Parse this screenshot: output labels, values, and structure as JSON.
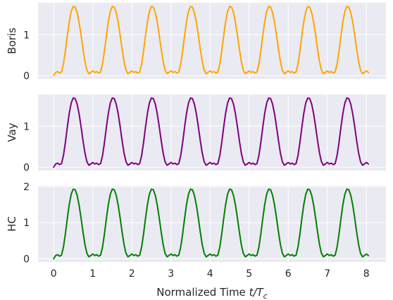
{
  "chart_data": [
    {
      "type": "line",
      "ylabel": "Boris",
      "xlim": [
        -0.4,
        8.5
      ],
      "ylim": [
        -0.08,
        1.78
      ],
      "yticks": [
        0,
        1
      ],
      "show_xticklabels": false,
      "grid": true,
      "series": [
        {
          "color": "#ffa500",
          "x": [
            0,
            0.05,
            0.1,
            0.15,
            0.2,
            0.25,
            0.3,
            0.35,
            0.4,
            0.45,
            0.5,
            0.55,
            0.6,
            0.65,
            0.7,
            0.75,
            0.8,
            0.85,
            0.9,
            0.95,
            1.0,
            1.05,
            1.1,
            1.15,
            1.2,
            1.25,
            1.3,
            1.35,
            1.4,
            1.45,
            1.5,
            1.55,
            1.6,
            1.65,
            1.7,
            1.75,
            1.8,
            1.85,
            1.9,
            1.95,
            2.0,
            2.05,
            2.1,
            2.15,
            2.2,
            2.25,
            2.3,
            2.35,
            2.4,
            2.45,
            2.5,
            2.55,
            2.6,
            2.65,
            2.7,
            2.75,
            2.8,
            2.85,
            2.9,
            2.95,
            3.0,
            3.05,
            3.1,
            3.15,
            3.2,
            3.25,
            3.3,
            3.35,
            3.4,
            3.45,
            3.5,
            3.55,
            3.6,
            3.65,
            3.7,
            3.75,
            3.8,
            3.85,
            3.9,
            3.95,
            4.0,
            4.05,
            4.1,
            4.15,
            4.2,
            4.25,
            4.3,
            4.35,
            4.4,
            4.45,
            4.5,
            4.55,
            4.6,
            4.65,
            4.7,
            4.75,
            4.8,
            4.85,
            4.9,
            4.95,
            5.0,
            5.05,
            5.1,
            5.15,
            5.2,
            5.25,
            5.3,
            5.35,
            5.4,
            5.45,
            5.5,
            5.55,
            5.6,
            5.65,
            5.7,
            5.75,
            5.8,
            5.85,
            5.9,
            5.95,
            6.0,
            6.05,
            6.1,
            6.15,
            6.2,
            6.25,
            6.3,
            6.35,
            6.4,
            6.45,
            6.5,
            6.55,
            6.6,
            6.65,
            6.7,
            6.75,
            6.8,
            6.85,
            6.9,
            6.95,
            7.0,
            7.05,
            7.1,
            7.15,
            7.2,
            7.25,
            7.3,
            7.35,
            7.4,
            7.45,
            7.5,
            7.55,
            7.6,
            7.65,
            7.7,
            7.75,
            7.8,
            7.85,
            7.9,
            7.95,
            8.0,
            8.05
          ],
          "y": [
            0.0,
            0.077,
            0.098,
            0.063,
            0.086,
            0.283,
            0.608,
            0.985,
            1.327,
            1.574,
            1.692,
            1.676,
            1.542,
            1.306,
            0.993,
            0.652,
            0.346,
            0.132,
            0.047,
            0.077,
            0.116,
            0.077,
            0.098,
            0.063,
            0.086,
            0.283,
            0.608,
            0.985,
            1.327,
            1.574,
            1.692,
            1.676,
            1.542,
            1.306,
            0.993,
            0.652,
            0.346,
            0.132,
            0.047,
            0.077,
            0.116,
            0.077,
            0.098,
            0.063,
            0.086,
            0.283,
            0.608,
            0.985,
            1.327,
            1.574,
            1.692,
            1.676,
            1.542,
            1.306,
            0.993,
            0.652,
            0.346,
            0.132,
            0.047,
            0.077,
            0.116,
            0.077,
            0.098,
            0.063,
            0.086,
            0.283,
            0.608,
            0.985,
            1.327,
            1.574,
            1.692,
            1.676,
            1.542,
            1.306,
            0.993,
            0.652,
            0.346,
            0.132,
            0.047,
            0.077,
            0.116,
            0.077,
            0.098,
            0.063,
            0.086,
            0.283,
            0.608,
            0.985,
            1.327,
            1.574,
            1.692,
            1.676,
            1.542,
            1.306,
            0.993,
            0.652,
            0.346,
            0.132,
            0.047,
            0.077,
            0.116,
            0.077,
            0.098,
            0.063,
            0.086,
            0.283,
            0.608,
            0.985,
            1.327,
            1.574,
            1.692,
            1.676,
            1.542,
            1.306,
            0.993,
            0.652,
            0.346,
            0.132,
            0.047,
            0.077,
            0.116,
            0.077,
            0.098,
            0.063,
            0.086,
            0.283,
            0.608,
            0.985,
            1.327,
            1.574,
            1.692,
            1.676,
            1.542,
            1.306,
            0.993,
            0.652,
            0.346,
            0.132,
            0.047,
            0.077,
            0.116,
            0.077,
            0.098,
            0.063,
            0.086,
            0.283,
            0.608,
            0.985,
            1.327,
            1.574,
            1.692,
            1.676,
            1.542,
            1.306,
            0.993,
            0.652,
            0.346,
            0.132,
            0.047,
            0.077,
            0.116,
            0.077
          ]
        }
      ]
    },
    {
      "type": "line",
      "ylabel": "Vay",
      "xlim": [
        -0.4,
        8.5
      ],
      "ylim": [
        -0.08,
        1.78
      ],
      "yticks": [
        0,
        1
      ],
      "show_xticklabels": false,
      "grid": true,
      "series": [
        {
          "color": "#800080",
          "x": [
            0,
            0.05,
            0.1,
            0.15,
            0.2,
            0.25,
            0.3,
            0.35,
            0.4,
            0.45,
            0.5,
            0.55,
            0.6,
            0.65,
            0.7,
            0.75,
            0.8,
            0.85,
            0.9,
            0.95,
            1.0,
            1.05,
            1.1,
            1.15,
            1.2,
            1.25,
            1.3,
            1.35,
            1.4,
            1.45,
            1.5,
            1.55,
            1.6,
            1.65,
            1.7,
            1.75,
            1.8,
            1.85,
            1.9,
            1.95,
            2.0,
            2.05,
            2.1,
            2.15,
            2.2,
            2.25,
            2.3,
            2.35,
            2.4,
            2.45,
            2.5,
            2.55,
            2.6,
            2.65,
            2.7,
            2.75,
            2.8,
            2.85,
            2.9,
            2.95,
            3.0,
            3.05,
            3.1,
            3.15,
            3.2,
            3.25,
            3.3,
            3.35,
            3.4,
            3.45,
            3.5,
            3.55,
            3.6,
            3.65,
            3.7,
            3.75,
            3.8,
            3.85,
            3.9,
            3.95,
            4.0,
            4.05,
            4.1,
            4.15,
            4.2,
            4.25,
            4.3,
            4.35,
            4.4,
            4.45,
            4.5,
            4.55,
            4.6,
            4.65,
            4.7,
            4.75,
            4.8,
            4.85,
            4.9,
            4.95,
            5.0,
            5.05,
            5.1,
            5.15,
            5.2,
            5.25,
            5.3,
            5.35,
            5.4,
            5.45,
            5.5,
            5.55,
            5.6,
            5.65,
            5.7,
            5.75,
            5.8,
            5.85,
            5.9,
            5.95,
            6.0,
            6.05,
            6.1,
            6.15,
            6.2,
            6.25,
            6.3,
            6.35,
            6.4,
            6.45,
            6.5,
            6.55,
            6.6,
            6.65,
            6.7,
            6.75,
            6.8,
            6.85,
            6.9,
            6.95,
            7.0,
            7.05,
            7.1,
            7.15,
            7.2,
            7.25,
            7.3,
            7.35,
            7.4,
            7.45,
            7.5,
            7.55,
            7.6,
            7.65,
            7.7,
            7.75,
            7.8,
            7.85,
            7.9,
            7.95,
            8.0,
            8.05
          ],
          "y": [
            0.0,
            0.077,
            0.098,
            0.063,
            0.086,
            0.283,
            0.608,
            0.985,
            1.327,
            1.574,
            1.692,
            1.676,
            1.542,
            1.306,
            0.993,
            0.652,
            0.346,
            0.132,
            0.047,
            0.077,
            0.116,
            0.077,
            0.098,
            0.063,
            0.086,
            0.283,
            0.608,
            0.985,
            1.327,
            1.574,
            1.692,
            1.676,
            1.542,
            1.306,
            0.993,
            0.652,
            0.346,
            0.132,
            0.047,
            0.077,
            0.116,
            0.077,
            0.098,
            0.063,
            0.086,
            0.283,
            0.608,
            0.985,
            1.327,
            1.574,
            1.692,
            1.676,
            1.542,
            1.306,
            0.993,
            0.652,
            0.346,
            0.132,
            0.047,
            0.077,
            0.116,
            0.077,
            0.098,
            0.063,
            0.086,
            0.283,
            0.608,
            0.985,
            1.327,
            1.574,
            1.692,
            1.676,
            1.542,
            1.306,
            0.993,
            0.652,
            0.346,
            0.132,
            0.047,
            0.077,
            0.116,
            0.077,
            0.098,
            0.063,
            0.086,
            0.283,
            0.608,
            0.985,
            1.327,
            1.574,
            1.692,
            1.676,
            1.542,
            1.306,
            0.993,
            0.652,
            0.346,
            0.132,
            0.047,
            0.077,
            0.116,
            0.077,
            0.098,
            0.063,
            0.086,
            0.283,
            0.608,
            0.985,
            1.327,
            1.574,
            1.692,
            1.676,
            1.542,
            1.306,
            0.993,
            0.652,
            0.346,
            0.132,
            0.047,
            0.077,
            0.116,
            0.077,
            0.098,
            0.063,
            0.086,
            0.283,
            0.608,
            0.985,
            1.327,
            1.574,
            1.692,
            1.676,
            1.542,
            1.306,
            0.993,
            0.652,
            0.346,
            0.132,
            0.047,
            0.077,
            0.116,
            0.077,
            0.098,
            0.063,
            0.086,
            0.283,
            0.608,
            0.985,
            1.327,
            1.574,
            1.692,
            1.676,
            1.542,
            1.306,
            0.993,
            0.652,
            0.346,
            0.132,
            0.047,
            0.077,
            0.116,
            0.077
          ]
        }
      ]
    },
    {
      "type": "line",
      "ylabel": "HC",
      "xlabel_text": "Normalized Time ",
      "xlabel_math": "t/T",
      "xlabel_sub": "c",
      "xlim": [
        -0.4,
        8.5
      ],
      "ylim": [
        -0.09,
        2.02
      ],
      "yticks": [
        0,
        1,
        2
      ],
      "xticks": [
        0,
        1,
        2,
        3,
        4,
        5,
        6,
        7,
        8
      ],
      "show_xticklabels": true,
      "grid": true,
      "series": [
        {
          "color": "#008000",
          "x": [
            0,
            0.05,
            0.1,
            0.15,
            0.2,
            0.25,
            0.3,
            0.35,
            0.4,
            0.45,
            0.5,
            0.55,
            0.6,
            0.65,
            0.7,
            0.75,
            0.8,
            0.85,
            0.9,
            0.95,
            1.0,
            1.05,
            1.1,
            1.15,
            1.2,
            1.25,
            1.3,
            1.35,
            1.4,
            1.45,
            1.5,
            1.55,
            1.6,
            1.65,
            1.7,
            1.75,
            1.8,
            1.85,
            1.9,
            1.95,
            2.0,
            2.05,
            2.1,
            2.15,
            2.2,
            2.25,
            2.3,
            2.35,
            2.4,
            2.45,
            2.5,
            2.55,
            2.6,
            2.65,
            2.7,
            2.75,
            2.8,
            2.85,
            2.9,
            2.95,
            3.0,
            3.05,
            3.1,
            3.15,
            3.2,
            3.25,
            3.3,
            3.35,
            3.4,
            3.45,
            3.5,
            3.55,
            3.6,
            3.65,
            3.7,
            3.75,
            3.8,
            3.85,
            3.9,
            3.95,
            4.0,
            4.05,
            4.1,
            4.15,
            4.2,
            4.25,
            4.3,
            4.35,
            4.4,
            4.45,
            4.5,
            4.55,
            4.6,
            4.65,
            4.7,
            4.75,
            4.8,
            4.85,
            4.9,
            4.95,
            5.0,
            5.05,
            5.1,
            5.15,
            5.2,
            5.25,
            5.3,
            5.35,
            5.4,
            5.45,
            5.5,
            5.55,
            5.6,
            5.65,
            5.7,
            5.75,
            5.8,
            5.85,
            5.9,
            5.95,
            6.0,
            6.05,
            6.1,
            6.15,
            6.2,
            6.25,
            6.3,
            6.35,
            6.4,
            6.45,
            6.5,
            6.55,
            6.6,
            6.65,
            6.7,
            6.75,
            6.8,
            6.85,
            6.9,
            6.95,
            7.0,
            7.05,
            7.1,
            7.15,
            7.2,
            7.25,
            7.3,
            7.35,
            7.4,
            7.45,
            7.5,
            7.55,
            7.6,
            7.65,
            7.7,
            7.75,
            7.8,
            7.85,
            7.9,
            7.95,
            8.0,
            8.05
          ],
          "y": [
            0.0,
            0.088,
            0.112,
            0.072,
            0.098,
            0.323,
            0.694,
            1.124,
            1.514,
            1.796,
            1.931,
            1.913,
            1.76,
            1.491,
            1.133,
            0.744,
            0.395,
            0.151,
            0.054,
            0.088,
            0.132,
            0.088,
            0.112,
            0.072,
            0.098,
            0.323,
            0.694,
            1.124,
            1.514,
            1.796,
            1.931,
            1.913,
            1.76,
            1.491,
            1.133,
            0.744,
            0.395,
            0.151,
            0.054,
            0.088,
            0.132,
            0.088,
            0.112,
            0.072,
            0.098,
            0.323,
            0.694,
            1.124,
            1.514,
            1.796,
            1.931,
            1.913,
            1.76,
            1.491,
            1.133,
            0.744,
            0.395,
            0.151,
            0.054,
            0.088,
            0.132,
            0.088,
            0.112,
            0.072,
            0.098,
            0.323,
            0.694,
            1.124,
            1.514,
            1.796,
            1.931,
            1.913,
            1.76,
            1.491,
            1.133,
            0.744,
            0.395,
            0.151,
            0.054,
            0.088,
            0.132,
            0.088,
            0.112,
            0.072,
            0.098,
            0.323,
            0.694,
            1.124,
            1.514,
            1.796,
            1.931,
            1.913,
            1.76,
            1.491,
            1.133,
            0.744,
            0.395,
            0.151,
            0.054,
            0.088,
            0.132,
            0.088,
            0.112,
            0.072,
            0.098,
            0.323,
            0.694,
            1.124,
            1.514,
            1.796,
            1.931,
            1.913,
            1.76,
            1.491,
            1.133,
            0.744,
            0.395,
            0.151,
            0.054,
            0.088,
            0.132,
            0.088,
            0.112,
            0.072,
            0.098,
            0.323,
            0.694,
            1.124,
            1.514,
            1.796,
            1.931,
            1.913,
            1.76,
            1.491,
            1.133,
            0.744,
            0.395,
            0.151,
            0.054,
            0.088,
            0.132,
            0.088,
            0.112,
            0.072,
            0.098,
            0.323,
            0.694,
            1.124,
            1.514,
            1.796,
            1.931,
            1.913,
            1.76,
            1.491,
            1.133,
            0.744,
            0.395,
            0.151,
            0.054,
            0.088,
            0.132,
            0.088
          ]
        }
      ]
    }
  ],
  "style": {
    "panel_background": "#eaeaf2",
    "grid_color": "#ffffff",
    "text_color": "#262626"
  }
}
